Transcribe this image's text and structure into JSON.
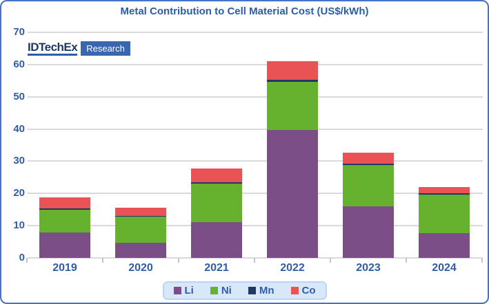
{
  "logo": {
    "name": "IDTechEx",
    "sub": "Research"
  },
  "colors": {
    "title_blue": "#2B5CA8",
    "axis_label_blue": "#2E5DA8",
    "grid": "#D9D9D9",
    "frame_border": "#4472C4",
    "li": "#7C4E87",
    "ni": "#66B22F",
    "mn": "#1F3864",
    "co": "#EA5355",
    "legend_bg": "#D9E8F8",
    "legend_border": "#BCD6F2",
    "logo_box_bg": "#3A66B0",
    "logo_text": "#1F3864"
  },
  "chart_data": {
    "type": "bar",
    "stacked": true,
    "title": "Metal Contribution to Cell Material Cost (US$/kWh)",
    "categories": [
      "2019",
      "2020",
      "2021",
      "2022",
      "2023",
      "2024"
    ],
    "series": [
      {
        "name": "Li",
        "color_key": "li",
        "values": [
          7.8,
          4.7,
          11.2,
          39.7,
          16.0,
          7.7
        ]
      },
      {
        "name": "Ni",
        "color_key": "ni",
        "values": [
          7.1,
          8.0,
          11.8,
          15.0,
          12.9,
          12.0
        ]
      },
      {
        "name": "Mn",
        "color_key": "mn",
        "values": [
          0.5,
          0.4,
          0.4,
          0.5,
          0.4,
          0.3
        ]
      },
      {
        "name": "Co",
        "color_key": "co",
        "values": [
          3.3,
          2.5,
          4.4,
          5.8,
          3.4,
          2.0
        ]
      }
    ],
    "totals": [
      18.7,
      15.6,
      27.8,
      61.0,
      32.7,
      22.0
    ],
    "xlabel": "",
    "ylabel": "",
    "ylim": [
      0,
      70
    ],
    "yticks": [
      0,
      10,
      20,
      30,
      40,
      50,
      60,
      70
    ],
    "grid": "horizontal",
    "legend_position": "bottom"
  }
}
